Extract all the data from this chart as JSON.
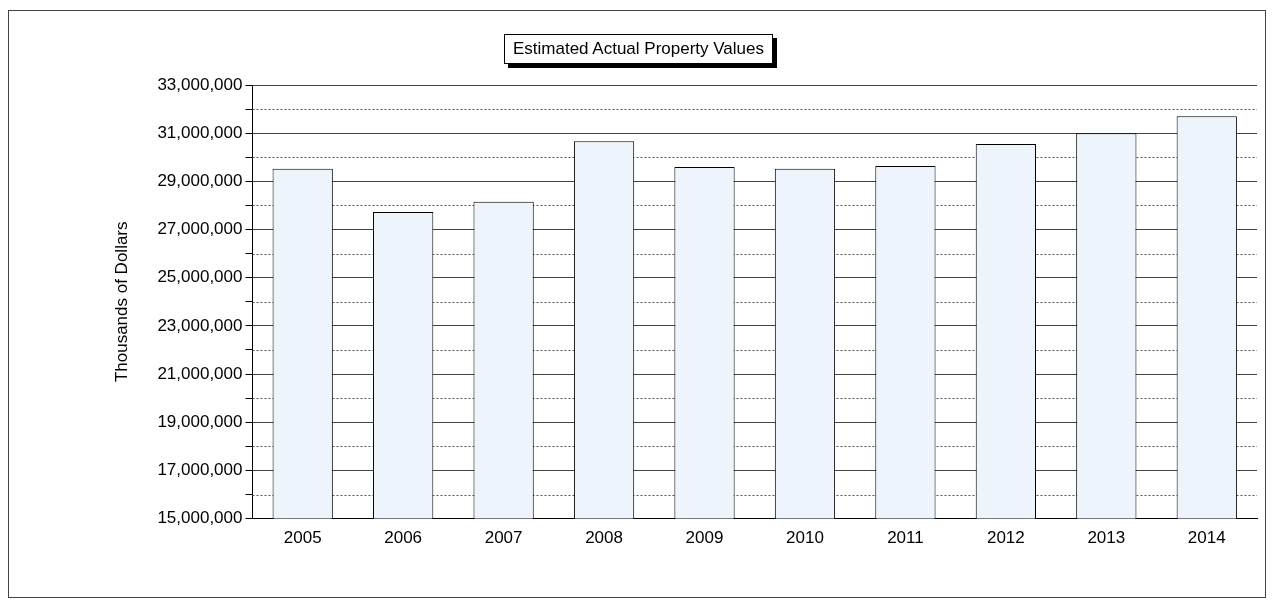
{
  "chart_data": {
    "type": "bar",
    "title": "Estimated Actual Property Values",
    "ylabel": "Thousands of Dollars",
    "categories": [
      "2005",
      "2006",
      "2007",
      "2008",
      "2009",
      "2010",
      "2011",
      "2012",
      "2013",
      "2014"
    ],
    "values": [
      29520000,
      27730000,
      28150000,
      30660000,
      29600000,
      29520000,
      29640000,
      30550000,
      31000000,
      31700000
    ],
    "color": "#eef4fb",
    "ylim": [
      15000000,
      33000000
    ],
    "yticks": [
      {
        "value": 15000000,
        "label": "15,000,000"
      },
      {
        "value": 16000000,
        "label": null
      },
      {
        "value": 17000000,
        "label": "17,000,000"
      },
      {
        "value": 18000000,
        "label": null
      },
      {
        "value": 19000000,
        "label": "19,000,000"
      },
      {
        "value": 20000000,
        "label": null
      },
      {
        "value": 21000000,
        "label": "21,000,000"
      },
      {
        "value": 22000000,
        "label": null
      },
      {
        "value": 23000000,
        "label": "23,000,000"
      },
      {
        "value": 24000000,
        "label": null
      },
      {
        "value": 25000000,
        "label": "25,000,000"
      },
      {
        "value": 26000000,
        "label": null
      },
      {
        "value": 27000000,
        "label": "27,000,000"
      },
      {
        "value": 28000000,
        "label": null
      },
      {
        "value": 29000000,
        "label": "29,000,000"
      },
      {
        "value": 30000000,
        "label": null
      },
      {
        "value": 31000000,
        "label": "31,000,000"
      },
      {
        "value": 32000000,
        "label": null
      },
      {
        "value": 33000000,
        "label": "33,000,000"
      }
    ],
    "grid": "y"
  }
}
